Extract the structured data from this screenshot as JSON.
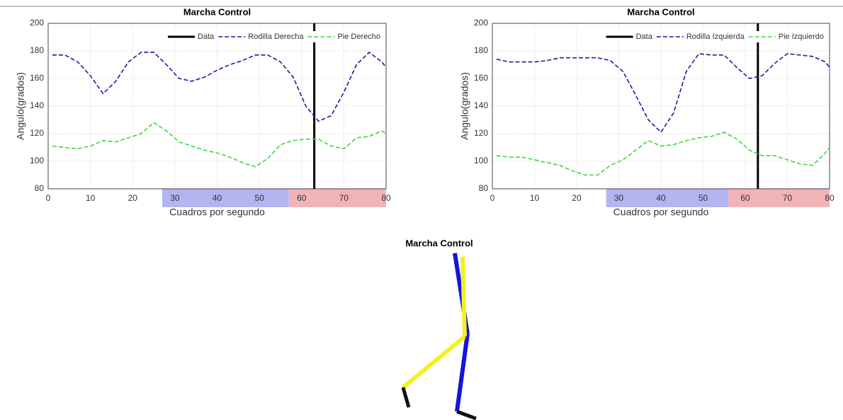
{
  "chart_data": [
    {
      "type": "line",
      "title": "Marcha Control",
      "x_label": "Cuadros por segundo",
      "y_label": "Angulo(grados)",
      "xlim": [
        0,
        80
      ],
      "ylim": [
        80,
        200
      ],
      "xticks": [
        0,
        10,
        20,
        30,
        40,
        50,
        60,
        70,
        80
      ],
      "yticks": [
        80,
        100,
        120,
        140,
        160,
        180,
        200
      ],
      "grid": true,
      "legend": "top-right",
      "regions": [
        {
          "range": [
            27,
            57
          ],
          "color": "#b4b4f0"
        },
        {
          "range": [
            57,
            80
          ],
          "color": "#f0b4b8"
        }
      ],
      "series": [
        {
          "name": "Data",
          "color": "#000000",
          "x": [
            63,
            63
          ],
          "values": [
            80,
            200
          ]
        },
        {
          "name": "Rodilla Derecha",
          "color": "#1c1c9c",
          "x": [
            1,
            4,
            7,
            10,
            13,
            16,
            19,
            22,
            25,
            28,
            31,
            34,
            37,
            40,
            43,
            46,
            49,
            52,
            55,
            58,
            61,
            64,
            67,
            70,
            73,
            76,
            79,
            80
          ],
          "values": [
            177,
            177,
            172,
            162,
            149,
            158,
            172,
            179,
            179,
            170,
            160,
            158,
            161,
            166,
            170,
            173,
            177,
            177,
            172,
            161,
            140,
            129,
            133,
            150,
            170,
            179,
            172,
            168
          ]
        },
        {
          "name": "Pie Derecho",
          "color": "#3cd83c",
          "x": [
            1,
            4,
            7,
            10,
            13,
            16,
            19,
            22,
            25,
            28,
            31,
            34,
            37,
            40,
            43,
            46,
            49,
            52,
            55,
            58,
            61,
            64,
            67,
            70,
            73,
            76,
            79,
            80
          ],
          "values": [
            111,
            110,
            109,
            111,
            115,
            114,
            117,
            120,
            128,
            122,
            114,
            111,
            108,
            106,
            103,
            99,
            96,
            102,
            112,
            115,
            116,
            116,
            111,
            109,
            117,
            118,
            122,
            120
          ]
        }
      ]
    },
    {
      "type": "line",
      "title": "Marcha Control",
      "x_label": "Cuadros por segundo",
      "y_label": "Angulo(grados)",
      "xlim": [
        0,
        80
      ],
      "ylim": [
        80,
        200
      ],
      "xticks": [
        0,
        10,
        20,
        30,
        40,
        50,
        60,
        70,
        80
      ],
      "yticks": [
        80,
        100,
        120,
        140,
        160,
        180,
        200
      ],
      "grid": true,
      "legend": "top-right",
      "regions": [
        {
          "range": [
            27,
            56
          ],
          "color": "#b4b4f0"
        },
        {
          "range": [
            56,
            80
          ],
          "color": "#f0b4b8"
        }
      ],
      "series": [
        {
          "name": "Data",
          "color": "#000000",
          "x": [
            63,
            63
          ],
          "values": [
            80,
            200
          ]
        },
        {
          "name": "Rodilla Izquierda",
          "color": "#1c1c9c",
          "x": [
            1,
            4,
            7,
            10,
            13,
            16,
            19,
            22,
            25,
            28,
            31,
            34,
            37,
            40,
            43,
            46,
            49,
            52,
            55,
            58,
            61,
            64,
            67,
            70,
            73,
            76,
            79,
            80
          ],
          "values": [
            174,
            172,
            172,
            172,
            173,
            175,
            175,
            175,
            175,
            173,
            165,
            148,
            130,
            121,
            135,
            165,
            178,
            177,
            177,
            168,
            160,
            162,
            171,
            178,
            177,
            176,
            172,
            168
          ]
        },
        {
          "name": "Pie Izquierdo",
          "color": "#3cd83c",
          "x": [
            1,
            4,
            7,
            10,
            13,
            16,
            19,
            22,
            25,
            28,
            31,
            34,
            37,
            40,
            43,
            46,
            49,
            52,
            55,
            58,
            61,
            64,
            67,
            70,
            73,
            76,
            79,
            80
          ],
          "values": [
            104,
            103,
            103,
            101,
            99,
            97,
            93,
            90,
            90,
            97,
            101,
            108,
            115,
            111,
            112,
            115,
            117,
            118,
            121,
            116,
            108,
            104,
            104,
            101,
            98,
            97,
            106,
            110
          ]
        }
      ]
    }
  ],
  "figure": {
    "title": "Marcha Control"
  }
}
